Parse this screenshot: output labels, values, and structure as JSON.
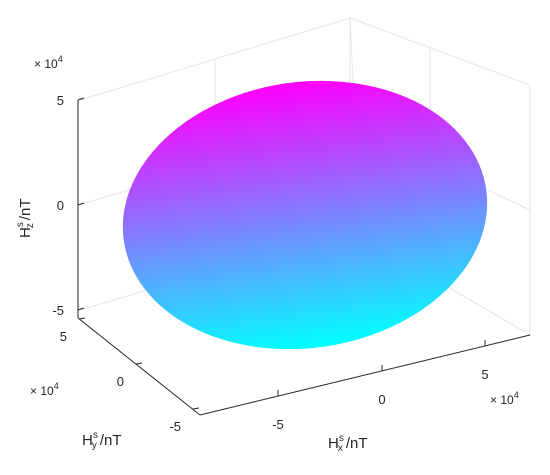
{
  "chart_data": {
    "type": "surface3d",
    "surface": {
      "shape": "ellipsoid",
      "colormap": [
        "#00ffff",
        "#ff00ff"
      ],
      "color_by": "z"
    },
    "axes": {
      "x": {
        "label_main": "H",
        "label_sup": "s",
        "label_sub": "x",
        "label_unit": "/nT",
        "ticks": [
          -5,
          0,
          5
        ],
        "tick_labels": [
          "-5",
          "0",
          "5"
        ],
        "multiplier_base": "× 10",
        "multiplier_exp": "4"
      },
      "y": {
        "label_main": "H",
        "label_sup": "s",
        "label_sub": "y",
        "label_unit": "/nT",
        "ticks": [
          -5,
          0,
          5
        ],
        "tick_labels": [
          "-5",
          "0",
          "5"
        ],
        "multiplier_base": "× 10",
        "multiplier_exp": "4"
      },
      "z": {
        "label_main": "H",
        "label_sup": "s",
        "label_sub": "z",
        "label_unit": "/nT",
        "ticks": [
          -5,
          0,
          5
        ],
        "tick_labels": [
          "-5",
          "0",
          "5"
        ],
        "multiplier_base": "× 10",
        "multiplier_exp": "4"
      }
    },
    "series": [
      {
        "marker": "x",
        "color": "#0072bd",
        "path": "equator-xy"
      },
      {
        "marker": "x",
        "color": "#0072bd",
        "path": "great-circle-1"
      },
      {
        "marker": "x",
        "color": "#0072bd",
        "path": "loop-2"
      }
    ],
    "grid": true,
    "box": true
  }
}
